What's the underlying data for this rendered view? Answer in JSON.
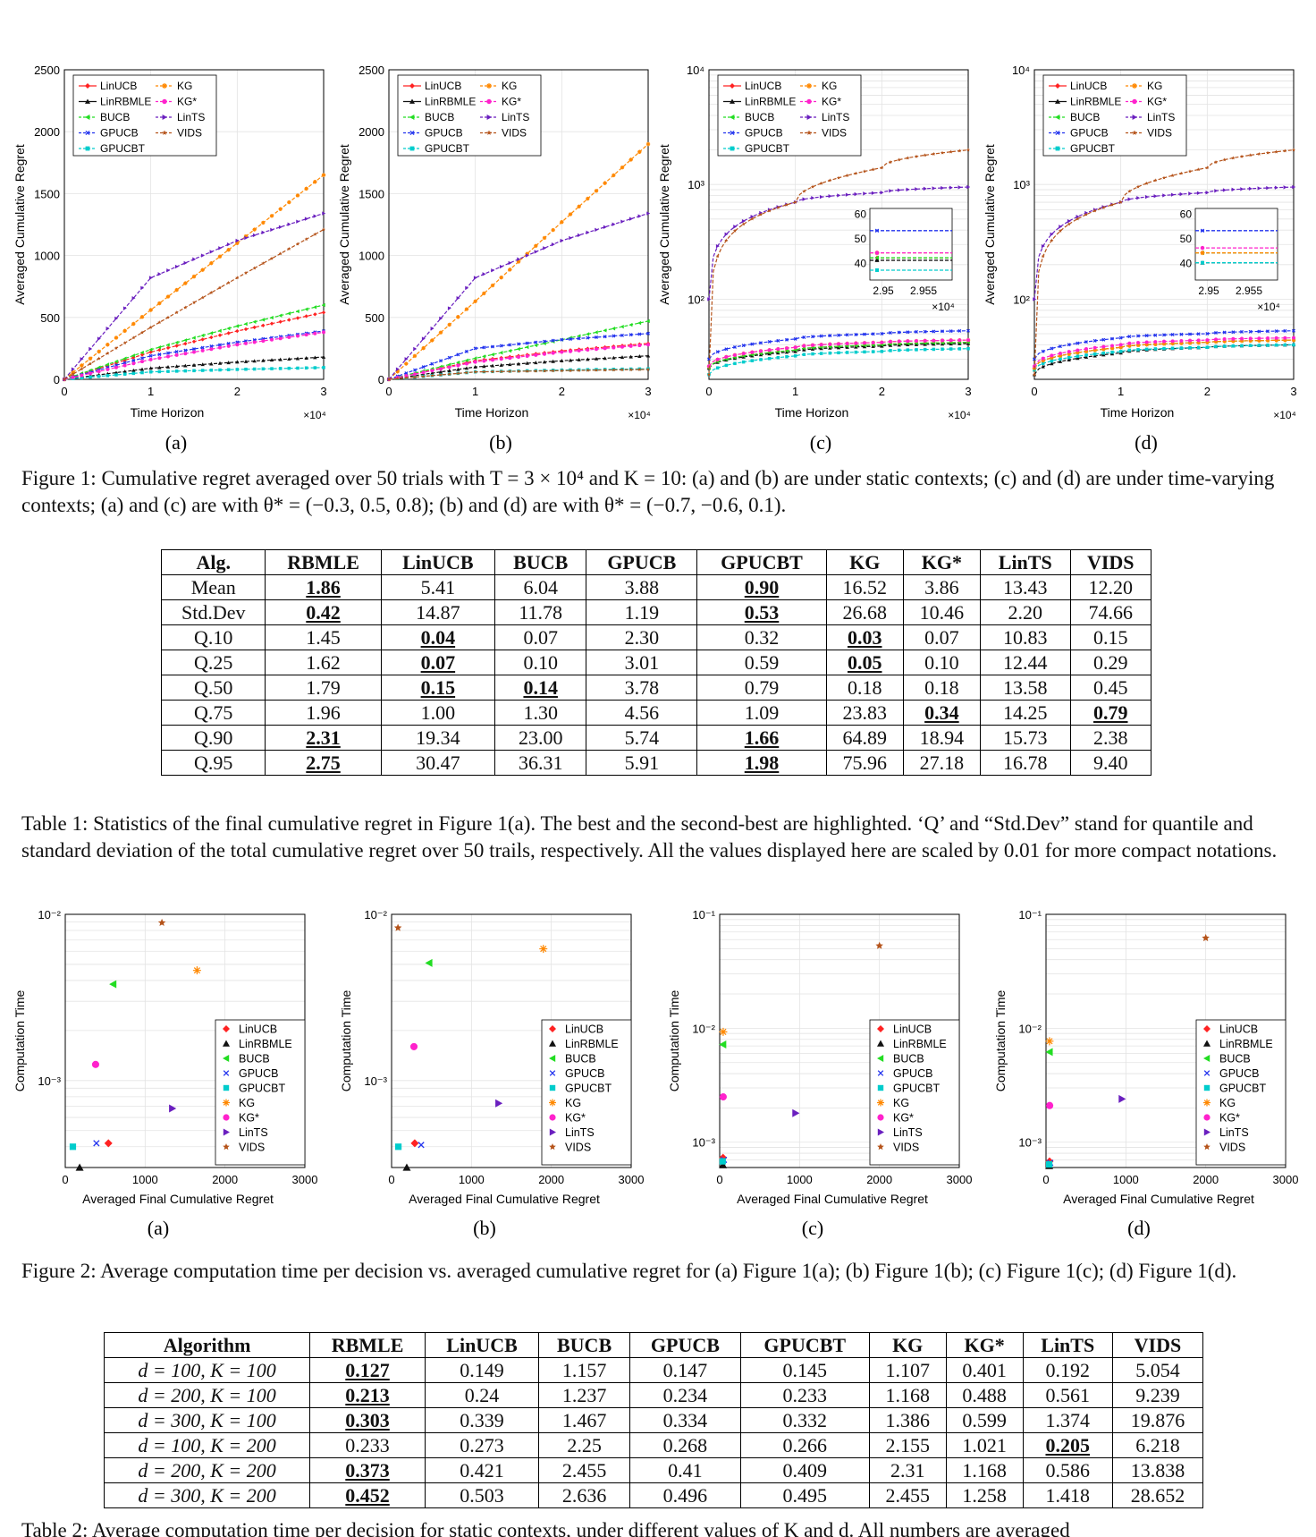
{
  "figure1": {
    "caption": "Figure 1: Cumulative regret averaged over 50 trials with T = 3 × 10⁴ and K = 10: (a) and (b) are under static contexts; (c) and (d) are under time-varying contexts; (a) and (c) are with θ* = (−0.3, 0.5, 0.8); (b) and (d) are with θ* = (−0.7, −0.6, 0.1).",
    "sublabels": [
      "(a)",
      "(b)",
      "(c)",
      "(d)"
    ],
    "xlabel": "Time Horizon",
    "ylabel": "Averaged Cumulative Regret",
    "xmult": "×10⁴",
    "xticks": [
      "0",
      "1",
      "2",
      "3"
    ],
    "yticks_linear": [
      "0",
      "500",
      "1000",
      "1500",
      "2000",
      "2500"
    ],
    "yticks_log": [
      "10²",
      "10³",
      "10⁴"
    ],
    "inset_yticks": [
      "60",
      "50",
      "40"
    ],
    "inset_xticks": [
      "2.95",
      "2.955"
    ],
    "inset_mult": "×10⁴"
  },
  "legend": {
    "col1": [
      "LinUCB",
      "LinRBMLE",
      "BUCB",
      "GPUCB",
      "GPUCBT"
    ],
    "col2": [
      "KG",
      "KG*",
      "LinTS",
      "VIDS"
    ]
  },
  "colors": {
    "LinUCB": "#ff2222",
    "LinRBMLE": "#111111",
    "BUCB": "#22dd22",
    "GPUCB": "#2233ee",
    "GPUCBT": "#00cccc",
    "KG": "#ff8800",
    "KG*": "#ff22cc",
    "LinTS": "#6a1fbf",
    "VIDS": "#b5531a"
  },
  "chart_data": [
    {
      "type": "line",
      "panel": "(a)",
      "ylim": [
        0,
        2500
      ],
      "x": [
        0,
        1,
        2,
        3
      ],
      "series": [
        {
          "name": "LinUCB",
          "values": [
            0,
            220,
            390,
            540
          ]
        },
        {
          "name": "LinRBMLE",
          "values": [
            0,
            90,
            140,
            180
          ]
        },
        {
          "name": "BUCB",
          "values": [
            0,
            240,
            430,
            600
          ]
        },
        {
          "name": "GPUCB",
          "values": [
            0,
            190,
            300,
            390
          ]
        },
        {
          "name": "GPUCBT",
          "values": [
            0,
            60,
            80,
            95
          ]
        },
        {
          "name": "KG",
          "values": [
            0,
            560,
            1100,
            1650
          ]
        },
        {
          "name": "KG*",
          "values": [
            0,
            160,
            280,
            380
          ]
        },
        {
          "name": "LinTS",
          "values": [
            0,
            820,
            1120,
            1340
          ]
        },
        {
          "name": "VIDS",
          "values": [
            0,
            420,
            820,
            1210
          ]
        }
      ]
    },
    {
      "type": "line",
      "panel": "(b)",
      "ylim": [
        0,
        2500
      ],
      "x": [
        0,
        1,
        2,
        3
      ],
      "series": [
        {
          "name": "LinUCB",
          "values": [
            0,
            150,
            230,
            290
          ]
        },
        {
          "name": "LinRBMLE",
          "values": [
            0,
            100,
            150,
            190
          ]
        },
        {
          "name": "BUCB",
          "values": [
            0,
            170,
            320,
            470
          ]
        },
        {
          "name": "GPUCB",
          "values": [
            0,
            250,
            320,
            370
          ]
        },
        {
          "name": "GPUCBT",
          "values": [
            0,
            60,
            75,
            85
          ]
        },
        {
          "name": "KG",
          "values": [
            0,
            630,
            1270,
            1900
          ]
        },
        {
          "name": "KG*",
          "values": [
            0,
            140,
            220,
            280
          ]
        },
        {
          "name": "LinTS",
          "values": [
            0,
            820,
            1120,
            1340
          ]
        },
        {
          "name": "VIDS",
          "values": [
            0,
            60,
            70,
            80
          ]
        }
      ]
    },
    {
      "type": "line",
      "panel": "(c)",
      "yscale": "log",
      "ylim": [
        20,
        10000
      ],
      "x": [
        0,
        1,
        2,
        3
      ],
      "series": [
        {
          "name": "LinUCB",
          "values": [
            25,
            36,
            40,
            42
          ]
        },
        {
          "name": "LinRBMLE",
          "values": [
            25,
            35,
            39,
            41
          ]
        },
        {
          "name": "BUCB",
          "values": [
            25,
            36,
            40,
            42
          ]
        },
        {
          "name": "GPUCB",
          "values": [
            30,
            45,
            50,
            53
          ]
        },
        {
          "name": "GPUCBT",
          "values": [
            22,
            32,
            35,
            37
          ]
        },
        {
          "name": "KG",
          "values": [
            26,
            38,
            42,
            44
          ]
        },
        {
          "name": "KG*",
          "values": [
            26,
            38,
            42,
            44
          ]
        },
        {
          "name": "LinTS",
          "values": [
            100,
            700,
            850,
            950
          ]
        },
        {
          "name": "VIDS",
          "values": [
            22,
            700,
            1400,
            2000
          ]
        }
      ]
    },
    {
      "type": "line",
      "panel": "(d)",
      "yscale": "log",
      "ylim": [
        20,
        10000
      ],
      "x": [
        0,
        1,
        2,
        3
      ],
      "series": [
        {
          "name": "LinUCB",
          "values": [
            25,
            38,
            42,
            44
          ]
        },
        {
          "name": "LinRBMLE",
          "values": [
            22,
            34,
            38,
            40
          ]
        },
        {
          "name": "BUCB",
          "values": [
            25,
            38,
            42,
            44
          ]
        },
        {
          "name": "GPUCB",
          "values": [
            30,
            46,
            50,
            53
          ]
        },
        {
          "name": "GPUCBT",
          "values": [
            24,
            35,
            38,
            40
          ]
        },
        {
          "name": "KG",
          "values": [
            25,
            38,
            42,
            44
          ]
        },
        {
          "name": "KG*",
          "values": [
            26,
            40,
            44,
            46
          ]
        },
        {
          "name": "LinTS",
          "values": [
            100,
            700,
            850,
            950
          ]
        },
        {
          "name": "VIDS",
          "values": [
            22,
            700,
            1400,
            2000
          ]
        }
      ]
    },
    {
      "type": "scatter",
      "panel": "(a)",
      "yscale": "log",
      "xlim": [
        0,
        3000
      ],
      "ylim": [
        0.0003,
        0.01
      ],
      "points": [
        {
          "name": "LinUCB",
          "x": 540,
          "y": 0.00042
        },
        {
          "name": "LinRBMLE",
          "x": 180,
          "y": 0.0003
        },
        {
          "name": "BUCB",
          "x": 600,
          "y": 0.0038
        },
        {
          "name": "GPUCB",
          "x": 390,
          "y": 0.00042
        },
        {
          "name": "GPUCBT",
          "x": 95,
          "y": 0.0004
        },
        {
          "name": "KG",
          "x": 1650,
          "y": 0.0046
        },
        {
          "name": "KG*",
          "x": 380,
          "y": 0.00125
        },
        {
          "name": "LinTS",
          "x": 1340,
          "y": 0.00068
        },
        {
          "name": "VIDS",
          "x": 1210,
          "y": 0.0089
        }
      ]
    },
    {
      "type": "scatter",
      "panel": "(b)",
      "yscale": "log",
      "xlim": [
        0,
        3000
      ],
      "ylim": [
        0.0003,
        0.01
      ],
      "points": [
        {
          "name": "LinUCB",
          "x": 290,
          "y": 0.00042
        },
        {
          "name": "LinRBMLE",
          "x": 190,
          "y": 0.0003
        },
        {
          "name": "BUCB",
          "x": 470,
          "y": 0.0051
        },
        {
          "name": "GPUCB",
          "x": 370,
          "y": 0.00041
        },
        {
          "name": "GPUCBT",
          "x": 85,
          "y": 0.0004
        },
        {
          "name": "KG",
          "x": 1900,
          "y": 0.0062
        },
        {
          "name": "KG*",
          "x": 280,
          "y": 0.0016
        },
        {
          "name": "LinTS",
          "x": 1340,
          "y": 0.00073
        },
        {
          "name": "VIDS",
          "x": 80,
          "y": 0.0083
        }
      ]
    },
    {
      "type": "scatter",
      "panel": "(c)",
      "yscale": "log",
      "xlim": [
        0,
        3000
      ],
      "ylim": [
        0.0006,
        0.1
      ],
      "points": [
        {
          "name": "LinUCB",
          "x": 42,
          "y": 0.00073
        },
        {
          "name": "LinRBMLE",
          "x": 41,
          "y": 0.00063
        },
        {
          "name": "BUCB",
          "x": 42,
          "y": 0.0072
        },
        {
          "name": "GPUCB",
          "x": 53,
          "y": 0.0007
        },
        {
          "name": "GPUCBT",
          "x": 37,
          "y": 0.00068
        },
        {
          "name": "KG",
          "x": 44,
          "y": 0.0093
        },
        {
          "name": "KG*",
          "x": 44,
          "y": 0.0025
        },
        {
          "name": "LinTS",
          "x": 950,
          "y": 0.0018
        },
        {
          "name": "VIDS",
          "x": 2000,
          "y": 0.053
        }
      ]
    },
    {
      "type": "scatter",
      "panel": "(d)",
      "yscale": "log",
      "xlim": [
        0,
        3000
      ],
      "ylim": [
        0.0006,
        0.1
      ],
      "points": [
        {
          "name": "LinUCB",
          "x": 44,
          "y": 0.00068
        },
        {
          "name": "LinRBMLE",
          "x": 40,
          "y": 0.00062
        },
        {
          "name": "BUCB",
          "x": 44,
          "y": 0.0062
        },
        {
          "name": "GPUCB",
          "x": 53,
          "y": 0.00066
        },
        {
          "name": "GPUCBT",
          "x": 40,
          "y": 0.00064
        },
        {
          "name": "KG",
          "x": 44,
          "y": 0.0077
        },
        {
          "name": "KG*",
          "x": 46,
          "y": 0.0021
        },
        {
          "name": "LinTS",
          "x": 950,
          "y": 0.0024
        },
        {
          "name": "VIDS",
          "x": 2000,
          "y": 0.062
        }
      ]
    }
  ],
  "table1": {
    "headers": [
      "Alg.",
      "RBMLE",
      "LinUCB",
      "BUCB",
      "GPUCB",
      "GPUCBT",
      "KG",
      "KG*",
      "LinTS",
      "VIDS"
    ],
    "rows": [
      {
        "label": "Mean",
        "cells": [
          "1.86",
          "5.41",
          "6.04",
          "3.88",
          "0.90",
          "16.52",
          "3.86",
          "13.43",
          "12.20"
        ],
        "best": [
          0,
          4
        ]
      },
      {
        "label": "Std.Dev",
        "cells": [
          "0.42",
          "14.87",
          "11.78",
          "1.19",
          "0.53",
          "26.68",
          "10.46",
          "2.20",
          "74.66"
        ],
        "best": [
          0,
          4
        ]
      },
      {
        "label": "Q.10",
        "cells": [
          "1.45",
          "0.04",
          "0.07",
          "2.30",
          "0.32",
          "0.03",
          "0.07",
          "10.83",
          "0.15"
        ],
        "best": [
          1,
          5
        ]
      },
      {
        "label": "Q.25",
        "cells": [
          "1.62",
          "0.07",
          "0.10",
          "3.01",
          "0.59",
          "0.05",
          "0.10",
          "12.44",
          "0.29"
        ],
        "best": [
          1,
          5
        ]
      },
      {
        "label": "Q.50",
        "cells": [
          "1.79",
          "0.15",
          "0.14",
          "3.78",
          "0.79",
          "0.18",
          "0.18",
          "13.58",
          "0.45"
        ],
        "best": [
          1,
          2
        ]
      },
      {
        "label": "Q.75",
        "cells": [
          "1.96",
          "1.00",
          "1.30",
          "4.56",
          "1.09",
          "23.83",
          "0.34",
          "14.25",
          "0.79"
        ],
        "best": [
          6,
          8
        ]
      },
      {
        "label": "Q.90",
        "cells": [
          "2.31",
          "19.34",
          "23.00",
          "5.74",
          "1.66",
          "64.89",
          "18.94",
          "15.73",
          "2.38"
        ],
        "best": [
          0,
          4
        ]
      },
      {
        "label": "Q.95",
        "cells": [
          "2.75",
          "30.47",
          "36.31",
          "5.91",
          "1.98",
          "75.96",
          "27.18",
          "16.78",
          "9.40"
        ],
        "best": [
          0,
          4
        ]
      }
    ],
    "caption": "Table 1: Statistics of the final cumulative regret in Figure 1(a). The best and the second-best are highlighted. ‘Q’ and “Std.Dev” stand for quantile and standard deviation of the total cumulative regret over 50 trails, respectively. All the values displayed here are scaled by 0.01 for more compact notations."
  },
  "figure2": {
    "caption": "Figure 2: Average computation time per decision vs. averaged cumulative regret for (a) Figure 1(a); (b) Figure 1(b); (c) Figure 1(c); (d) Figure 1(d).",
    "sublabels": [
      "(a)",
      "(b)",
      "(c)",
      "(d)"
    ],
    "xlabel": "Averaged Final Cumulative Regret",
    "ylabel": "Computation Time",
    "xticks": [
      "0",
      "1000",
      "2000",
      "3000"
    ],
    "yticks_ab": [
      "10⁻²",
      "10⁻³"
    ],
    "yticks_cd": [
      "10⁻¹",
      "10⁻²",
      "10⁻³"
    ]
  },
  "table2": {
    "headers": [
      "Algorithm",
      "RBMLE",
      "LinUCB",
      "BUCB",
      "GPUCB",
      "GPUCBT",
      "KG",
      "KG*",
      "LinTS",
      "VIDS"
    ],
    "rows": [
      {
        "label": "d = 100, K = 100",
        "cells": [
          "0.127",
          "0.149",
          "1.157",
          "0.147",
          "0.145",
          "1.107",
          "0.401",
          "0.192",
          "5.054"
        ],
        "best": [
          0
        ]
      },
      {
        "label": "d = 200, K = 100",
        "cells": [
          "0.213",
          "0.24",
          "1.237",
          "0.234",
          "0.233",
          "1.168",
          "0.488",
          "0.561",
          "9.239"
        ],
        "best": [
          0
        ]
      },
      {
        "label": "d = 300, K = 100",
        "cells": [
          "0.303",
          "0.339",
          "1.467",
          "0.334",
          "0.332",
          "1.386",
          "0.599",
          "1.374",
          "19.876"
        ],
        "best": [
          0
        ]
      },
      {
        "label": "d = 100, K = 200",
        "cells": [
          "0.233",
          "0.273",
          "2.25",
          "0.268",
          "0.266",
          "2.155",
          "1.021",
          "0.205",
          "6.218"
        ],
        "best": [
          7
        ]
      },
      {
        "label": "d = 200, K = 200",
        "cells": [
          "0.373",
          "0.421",
          "2.455",
          "0.41",
          "0.409",
          "2.31",
          "1.168",
          "0.586",
          "13.838"
        ],
        "best": [
          0
        ]
      },
      {
        "label": "d = 300, K = 200",
        "cells": [
          "0.452",
          "0.503",
          "2.636",
          "0.496",
          "0.495",
          "2.455",
          "1.258",
          "1.418",
          "28.652"
        ],
        "best": [
          0
        ]
      }
    ],
    "caption": "Table 2: Average computation time per decision for static contexts, under different values of K and d. All numbers are averaged"
  }
}
